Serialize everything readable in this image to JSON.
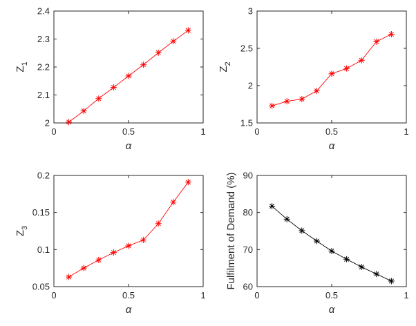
{
  "chart_data": [
    {
      "type": "line",
      "marker": "asterisk",
      "color": "#ff0000",
      "x": [
        0.1,
        0.2,
        0.3,
        0.4,
        0.5,
        0.6,
        0.7,
        0.8,
        0.9
      ],
      "y": [
        2.003,
        2.043,
        2.087,
        2.127,
        2.168,
        2.208,
        2.251,
        2.292,
        2.331
      ],
      "xlabel": "α",
      "ylabel": "Z",
      "ylabel_sub": "1",
      "xlim": [
        0,
        1
      ],
      "ylim": [
        2,
        2.4
      ],
      "xticks": [
        0,
        0.5,
        1
      ],
      "xtick_labels": [
        "0",
        "0.5",
        "1"
      ],
      "yticks": [
        2,
        2.1,
        2.2,
        2.3,
        2.4
      ],
      "ytick_labels": [
        "2",
        "2.1",
        "2.2",
        "2.3",
        "2.4"
      ],
      "grid": false
    },
    {
      "type": "line",
      "marker": "asterisk",
      "color": "#ff0000",
      "x": [
        0.1,
        0.2,
        0.3,
        0.4,
        0.5,
        0.6,
        0.7,
        0.8,
        0.9
      ],
      "y": [
        1.73,
        1.79,
        1.82,
        1.93,
        2.16,
        2.23,
        2.34,
        2.59,
        2.69
      ],
      "xlabel": "α",
      "ylabel": "Z",
      "ylabel_sub": "2",
      "xlim": [
        0,
        1
      ],
      "ylim": [
        1.5,
        3
      ],
      "xticks": [
        0,
        0.5,
        1
      ],
      "xtick_labels": [
        "0",
        "0.5",
        "1"
      ],
      "yticks": [
        1.5,
        2,
        2.5,
        3
      ],
      "ytick_labels": [
        "1.5",
        "2",
        "2.5",
        "3"
      ],
      "grid": false
    },
    {
      "type": "line",
      "marker": "asterisk",
      "color": "#ff0000",
      "x": [
        0.1,
        0.2,
        0.3,
        0.4,
        0.5,
        0.6,
        0.7,
        0.8,
        0.9
      ],
      "y": [
        0.063,
        0.075,
        0.086,
        0.096,
        0.105,
        0.113,
        0.135,
        0.164,
        0.191
      ],
      "xlabel": "α",
      "ylabel": "Z",
      "ylabel_sub": "3",
      "xlim": [
        0,
        1
      ],
      "ylim": [
        0.05,
        0.2
      ],
      "xticks": [
        0,
        0.5,
        1
      ],
      "xtick_labels": [
        "0",
        "0.5",
        "1"
      ],
      "yticks": [
        0.05,
        0.1,
        0.15,
        0.2
      ],
      "ytick_labels": [
        "0.05",
        "0.1",
        "0.15",
        "0.2"
      ],
      "grid": false
    },
    {
      "type": "line",
      "marker": "asterisk",
      "color": "#000000",
      "x": [
        0.1,
        0.2,
        0.3,
        0.4,
        0.5,
        0.6,
        0.7,
        0.8,
        0.9
      ],
      "y": [
        81.7,
        78.2,
        75.1,
        72.3,
        69.6,
        67.4,
        65.3,
        63.4,
        61.5
      ],
      "xlabel": "α",
      "ylabel": "Fulfilment of Demand (%)",
      "ylabel_sub": "",
      "xlim": [
        0,
        1
      ],
      "ylim": [
        60,
        90
      ],
      "xticks": [
        0,
        0.5,
        1
      ],
      "xtick_labels": [
        "0",
        "0.5",
        "1"
      ],
      "yticks": [
        60,
        70,
        80,
        90
      ],
      "ytick_labels": [
        "60",
        "70",
        "80",
        "90"
      ],
      "grid": false
    }
  ]
}
